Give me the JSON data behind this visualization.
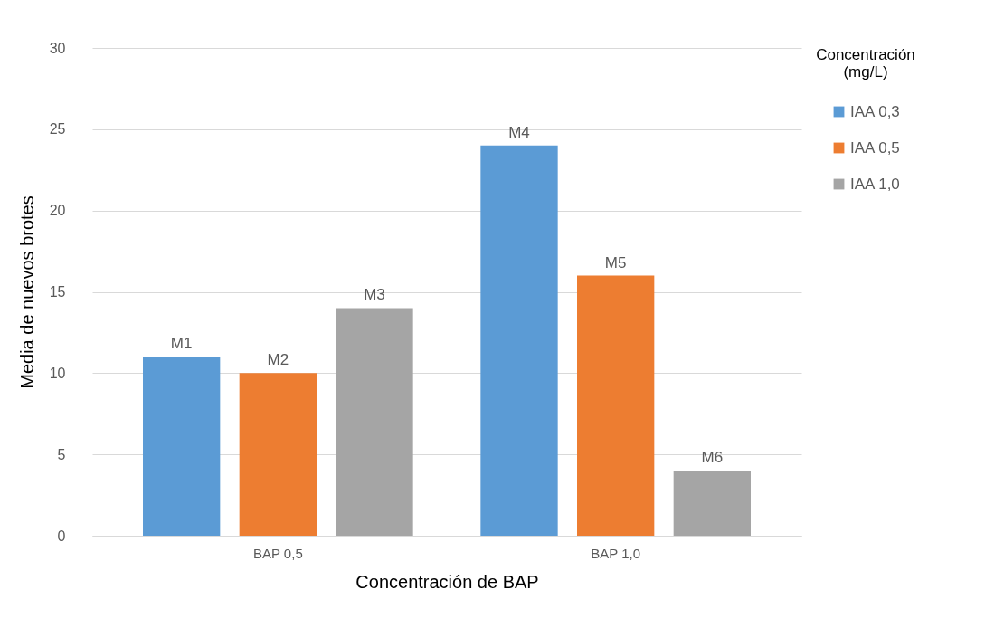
{
  "chart_data": {
    "type": "bar",
    "xlabel": "Concentración de BAP",
    "ylabel": "Media de nuevos brotes",
    "legend_title": "Concentración (mg/L)",
    "categories": [
      "BAP 0,5",
      "BAP 1,0"
    ],
    "series": [
      {
        "name": "IAA 0,3",
        "color": "#5b9bd5",
        "values": [
          11,
          24
        ],
        "value_labels": [
          "M1",
          "M4"
        ]
      },
      {
        "name": "IAA 0,5",
        "color": "#ed7d31",
        "values": [
          10,
          16
        ],
        "value_labels": [
          "M2",
          "M5"
        ]
      },
      {
        "name": "IAA 1,0",
        "color": "#a5a5a5",
        "values": [
          14,
          4
        ],
        "value_labels": [
          "M3",
          "M6"
        ]
      }
    ],
    "ylim": [
      0,
      30
    ],
    "yticks": [
      0,
      5,
      10,
      15,
      20,
      25,
      30
    ],
    "grid": "y",
    "legend": "right"
  }
}
